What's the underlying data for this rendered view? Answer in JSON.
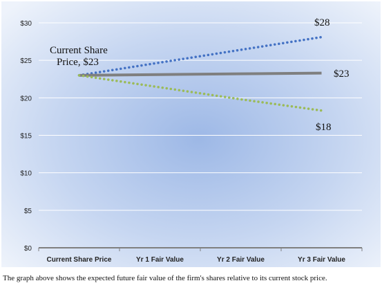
{
  "chart_data": {
    "type": "line",
    "categories": [
      "Current Share Price",
      "Yr 1 Fair Value",
      "Yr 2 Fair Value",
      "Yr 3 Fair Value"
    ],
    "series": [
      {
        "values": [
          23,
          24.7,
          26.4,
          28.1
        ],
        "color": "#4472C4",
        "style": "dotted"
      },
      {
        "values": [
          23,
          23.1,
          23.2,
          23.3
        ],
        "color": "#7F7F7F",
        "style": "solid"
      },
      {
        "values": [
          23,
          21.4,
          19.8,
          18.3
        ],
        "color": "#9BBB59",
        "style": "dotted"
      }
    ],
    "y_tick_labels": [
      "$0",
      "$5",
      "$10",
      "$15",
      "$20",
      "$25",
      "$30"
    ],
    "ylim": [
      0,
      30
    ],
    "ystep": 5,
    "grid": true,
    "annotations": {
      "current_line1": "Current Share",
      "current_line2": "Price, $23",
      "high": "$28",
      "mid": "$23",
      "low": "$18"
    },
    "caption": "The graph above shows the expected future fair value of the firm's shares relative to its current stock price."
  }
}
